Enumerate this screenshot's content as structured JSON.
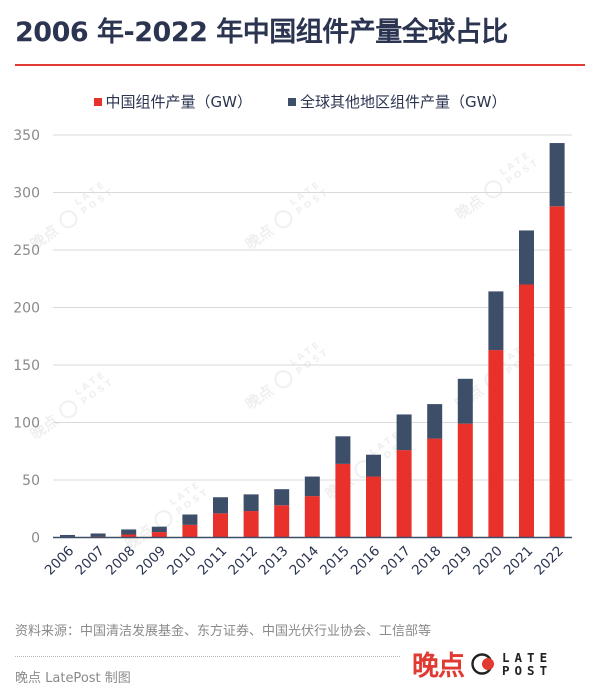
{
  "header": {
    "title": "2006 年-2022 年中国组件产量全球占比"
  },
  "colors": {
    "china": "#e8312a",
    "rest_of_world": "#3d4e69",
    "accent_rule": "#e03a32"
  },
  "chart_data": {
    "type": "bar",
    "stacked": true,
    "title": "2006 年-2022 年中国组件产量全球占比",
    "xlabel": "",
    "ylabel": "",
    "ylim": [
      0,
      350
    ],
    "yticks": [
      0,
      50,
      100,
      150,
      200,
      250,
      300,
      350
    ],
    "grid": true,
    "legend_position": "top-center",
    "categories": [
      "2006",
      "2007",
      "2008",
      "2009",
      "2010",
      "2011",
      "2012",
      "2013",
      "2014",
      "2015",
      "2016",
      "2017",
      "2018",
      "2019",
      "2020",
      "2021",
      "2022"
    ],
    "series": [
      {
        "name": "中国组件产量（GW）",
        "color": "#e8312a",
        "values": [
          0.5,
          0.8,
          2.6,
          4.7,
          11,
          21,
          23,
          28,
          36,
          64,
          53,
          76,
          86,
          99,
          163,
          220,
          288
        ]
      },
      {
        "name": "全球其他地区组件产量（GW）",
        "color": "#3d4e69",
        "values": [
          1.7,
          2.7,
          4.4,
          4.7,
          9,
          14,
          14.5,
          14,
          17,
          24,
          19,
          31,
          30,
          39,
          51,
          47,
          55
        ]
      }
    ]
  },
  "watermark": {
    "text_cn": "晚点",
    "text_en_line1": "LATE",
    "text_en_line2": "POST"
  },
  "footer": {
    "source": "资料来源：中国清洁发展基金、东方证券、中国光伏行业协会、工信部等",
    "credit": "晚点 LatePost 制图",
    "brand_cn": "晚点",
    "brand_en_line1": "LATE",
    "brand_en_line2": "POST"
  }
}
